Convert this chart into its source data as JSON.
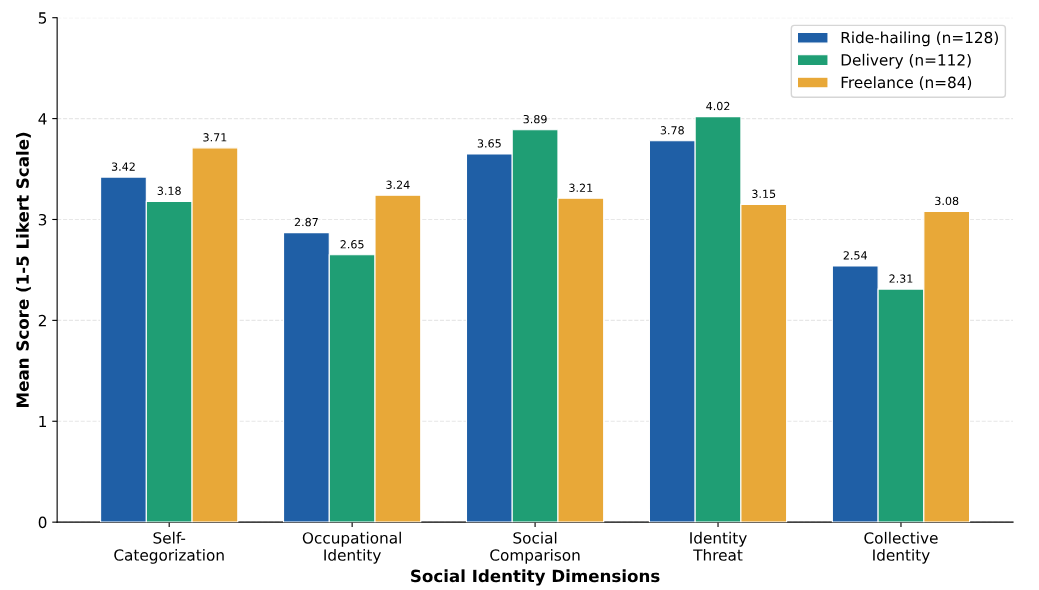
{
  "chart_data": {
    "type": "bar",
    "xlabel": "Social Identity Dimensions",
    "ylabel": "Mean Score (1-5 Likert Scale)",
    "categories": [
      "Self-\nCategorization",
      "Occupational\nIdentity",
      "Social\nComparison",
      "Identity\nThreat",
      "Collective\nIdentity"
    ],
    "series": [
      {
        "name": "Ride-hailing (n=128)",
        "color": "#1f5fa6",
        "values": [
          3.42,
          2.87,
          3.65,
          3.78,
          2.54
        ]
      },
      {
        "name": "Delivery (n=112)",
        "color": "#1f9e74",
        "values": [
          3.18,
          2.65,
          3.89,
          4.02,
          2.31
        ]
      },
      {
        "name": "Freelance (n=84)",
        "color": "#e8a838",
        "values": [
          3.71,
          3.24,
          3.21,
          3.15,
          3.08
        ]
      }
    ],
    "ylim": [
      0,
      5
    ],
    "yticks": [
      0,
      1,
      2,
      3,
      4,
      5
    ],
    "grid": "y",
    "legend": "top right",
    "data_labels": true
  }
}
